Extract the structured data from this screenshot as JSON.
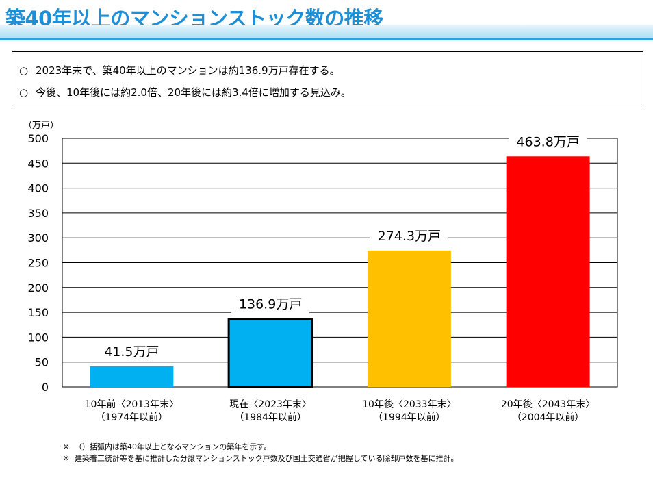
{
  "header": {
    "title": "築40年以上のマンションストック数の推移"
  },
  "summary": {
    "bullet": "○",
    "lines": [
      "2023年末で、築40年以上のマンションは約136.9万戸存在する。",
      "今後、10年後には約2.0倍、20年後には約3.4倍に増加する見込み。"
    ]
  },
  "chart_data": {
    "type": "bar",
    "title": "築40年以上のマンションストック数の推移",
    "ylabel": "（万戸）",
    "xlabel": "",
    "ylim": [
      0,
      500
    ],
    "yticks": [
      0,
      50,
      100,
      150,
      200,
      250,
      300,
      350,
      400,
      450,
      500
    ],
    "grid": true,
    "categories": [
      [
        "10年前〈2013年末〉",
        "（1974年以前）"
      ],
      [
        "現在〈2023年末〉",
        "（1984年以前）"
      ],
      [
        "10年後〈2033年末〉",
        "（1994年以前）"
      ],
      [
        "20年後〈2043年末〉",
        "（2004年以前）"
      ]
    ],
    "values": [
      41.5,
      136.9,
      274.3,
      463.8
    ],
    "data_labels": [
      "41.5万戸",
      "136.9万戸",
      "274.3万戸",
      "463.8万戸"
    ],
    "colors": [
      "#00b0f0",
      "#00b0f0",
      "#ffc000",
      "#ff0000"
    ],
    "highlighted_index": 1
  },
  "notes": [
    {
      "mark": "※",
      "text": "（）括弧内は築40年以上となるマンションの築年を示す。"
    },
    {
      "mark": "※",
      "text": "建築着工統計等を基に推計した分譲マンションストック戸数及び国土交通省が把握している除却戸数を基に推計。"
    }
  ]
}
